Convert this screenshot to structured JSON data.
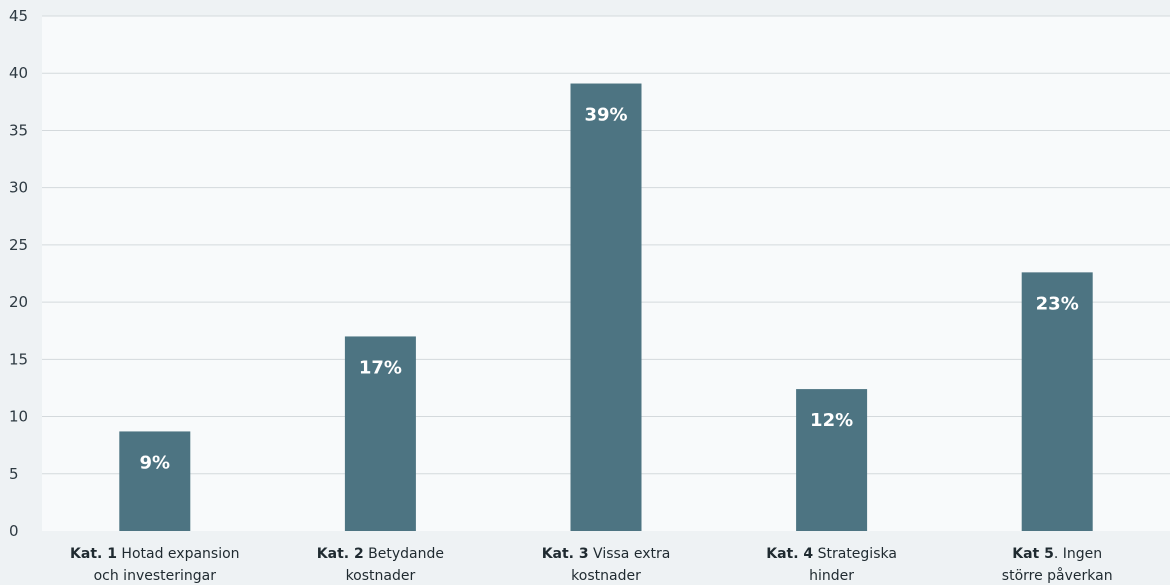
{
  "chart_data": {
    "type": "bar",
    "title": "",
    "xlabel": "",
    "ylabel": "",
    "ylim": [
      0,
      45
    ],
    "yticks": [
      "0",
      "5",
      "10",
      "15",
      "20",
      "25",
      "30",
      "35",
      "40",
      "45"
    ],
    "grid": true,
    "categories": [
      {
        "bold": "Kat. 1",
        "rest": " Hotad expansion",
        "line2": "och investeringar"
      },
      {
        "bold": "Kat. 2",
        "rest": " Betydande",
        "line2": "kostnader"
      },
      {
        "bold": "Kat. 3",
        "rest": " Vissa extra",
        "line2": "kostnader"
      },
      {
        "bold": "Kat. 4",
        "rest": " Strategiska",
        "line2": "hinder"
      },
      {
        "bold": "Kat 5",
        "rest": ". Ingen",
        "line2": "större påverkan"
      }
    ],
    "values": [
      8.7,
      17,
      39.1,
      12.4,
      22.6
    ],
    "data_labels": [
      "9%",
      "17%",
      "39%",
      "12%",
      "23%"
    ],
    "colors": {
      "bar": "#4d7482",
      "grid": "#d4d9dc",
      "plot_bg": "#f8fafb",
      "page_bg": "#eef2f4"
    }
  }
}
